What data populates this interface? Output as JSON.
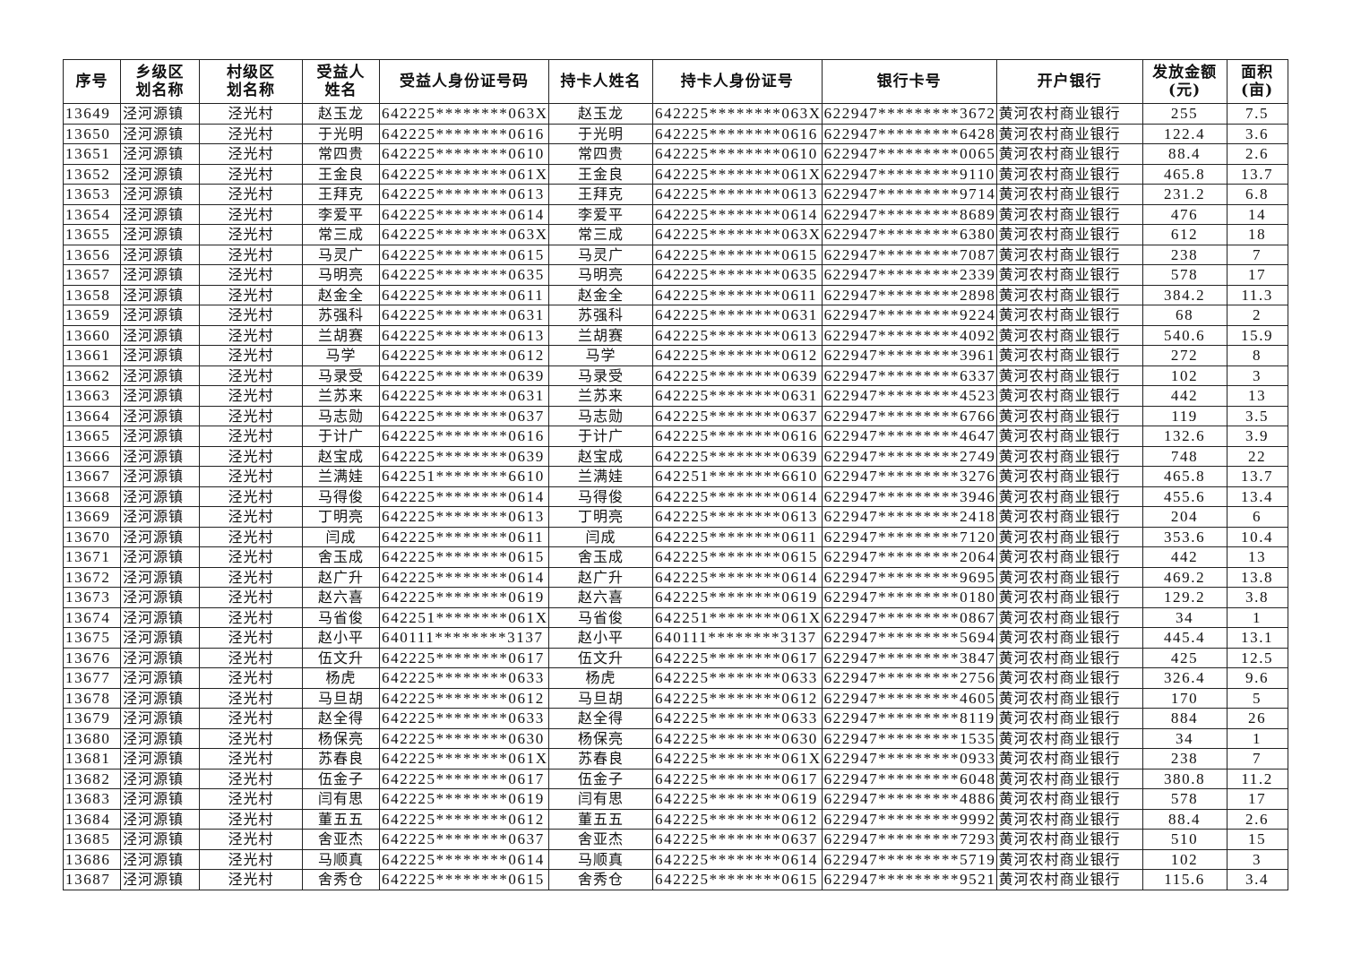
{
  "table": {
    "headers": [
      "序号",
      "乡级区\n划名称",
      "村级区\n划名称",
      "受益人\n姓名",
      "受益人身份证号码",
      "持卡人姓名",
      "持卡人身份证号",
      "银行卡号",
      "开户银行",
      "发放金额\n(元)",
      "面积\n(亩)"
    ],
    "rows": [
      [
        "13649",
        "泾河源镇",
        "泾光村",
        "赵玉龙",
        "642225********063X",
        "赵玉龙",
        "642225********063X",
        "622947*********3672",
        "黄河农村商业银行",
        "255",
        "7.5"
      ],
      [
        "13650",
        "泾河源镇",
        "泾光村",
        "于光明",
        "642225********0616",
        "于光明",
        "642225********0616",
        "622947*********6428",
        "黄河农村商业银行",
        "122.4",
        "3.6"
      ],
      [
        "13651",
        "泾河源镇",
        "泾光村",
        "常四贵",
        "642225********0610",
        "常四贵",
        "642225********0610",
        "622947*********0065",
        "黄河农村商业银行",
        "88.4",
        "2.6"
      ],
      [
        "13652",
        "泾河源镇",
        "泾光村",
        "王金良",
        "642225********061X",
        "王金良",
        "642225********061X",
        "622947*********9110",
        "黄河农村商业银行",
        "465.8",
        "13.7"
      ],
      [
        "13653",
        "泾河源镇",
        "泾光村",
        "王拜克",
        "642225********0613",
        "王拜克",
        "642225********0613",
        "622947*********9714",
        "黄河农村商业银行",
        "231.2",
        "6.8"
      ],
      [
        "13654",
        "泾河源镇",
        "泾光村",
        "李爱平",
        "642225********0614",
        "李爱平",
        "642225********0614",
        "622947*********8689",
        "黄河农村商业银行",
        "476",
        "14"
      ],
      [
        "13655",
        "泾河源镇",
        "泾光村",
        "常三成",
        "642225********063X",
        "常三成",
        "642225********063X",
        "622947*********6380",
        "黄河农村商业银行",
        "612",
        "18"
      ],
      [
        "13656",
        "泾河源镇",
        "泾光村",
        "马灵广",
        "642225********0615",
        "马灵广",
        "642225********0615",
        "622947*********7087",
        "黄河农村商业银行",
        "238",
        "7"
      ],
      [
        "13657",
        "泾河源镇",
        "泾光村",
        "马明亮",
        "642225********0635",
        "马明亮",
        "642225********0635",
        "622947*********2339",
        "黄河农村商业银行",
        "578",
        "17"
      ],
      [
        "13658",
        "泾河源镇",
        "泾光村",
        "赵金全",
        "642225********0611",
        "赵金全",
        "642225********0611",
        "622947*********2898",
        "黄河农村商业银行",
        "384.2",
        "11.3"
      ],
      [
        "13659",
        "泾河源镇",
        "泾光村",
        "苏强科",
        "642225********0631",
        "苏强科",
        "642225********0631",
        "622947*********9224",
        "黄河农村商业银行",
        "68",
        "2"
      ],
      [
        "13660",
        "泾河源镇",
        "泾光村",
        "兰胡赛",
        "642225********0613",
        "兰胡赛",
        "642225********0613",
        "622947*********4092",
        "黄河农村商业银行",
        "540.6",
        "15.9"
      ],
      [
        "13661",
        "泾河源镇",
        "泾光村",
        "马学",
        "642225********0612",
        "马学",
        "642225********0612",
        "622947*********3961",
        "黄河农村商业银行",
        "272",
        "8"
      ],
      [
        "13662",
        "泾河源镇",
        "泾光村",
        "马录受",
        "642225********0639",
        "马录受",
        "642225********0639",
        "622947*********6337",
        "黄河农村商业银行",
        "102",
        "3"
      ],
      [
        "13663",
        "泾河源镇",
        "泾光村",
        "兰苏来",
        "642225********0631",
        "兰苏来",
        "642225********0631",
        "622947*********4523",
        "黄河农村商业银行",
        "442",
        "13"
      ],
      [
        "13664",
        "泾河源镇",
        "泾光村",
        "马志勋",
        "642225********0637",
        "马志勋",
        "642225********0637",
        "622947*********6766",
        "黄河农村商业银行",
        "119",
        "3.5"
      ],
      [
        "13665",
        "泾河源镇",
        "泾光村",
        "于计广",
        "642225********0616",
        "于计广",
        "642225********0616",
        "622947*********4647",
        "黄河农村商业银行",
        "132.6",
        "3.9"
      ],
      [
        "13666",
        "泾河源镇",
        "泾光村",
        "赵宝成",
        "642225********0639",
        "赵宝成",
        "642225********0639",
        "622947*********2749",
        "黄河农村商业银行",
        "748",
        "22"
      ],
      [
        "13667",
        "泾河源镇",
        "泾光村",
        "兰满娃",
        "642251********6610",
        "兰满娃",
        "642251********6610",
        "622947*********3276",
        "黄河农村商业银行",
        "465.8",
        "13.7"
      ],
      [
        "13668",
        "泾河源镇",
        "泾光村",
        "马得俊",
        "642225********0614",
        "马得俊",
        "642225********0614",
        "622947*********3946",
        "黄河农村商业银行",
        "455.6",
        "13.4"
      ],
      [
        "13669",
        "泾河源镇",
        "泾光村",
        "丁明亮",
        "642225********0613",
        "丁明亮",
        "642225********0613",
        "622947*********2418",
        "黄河农村商业银行",
        "204",
        "6"
      ],
      [
        "13670",
        "泾河源镇",
        "泾光村",
        "闫成",
        "642225********0611",
        "闫成",
        "642225********0611",
        "622947*********7120",
        "黄河农村商业银行",
        "353.6",
        "10.4"
      ],
      [
        "13671",
        "泾河源镇",
        "泾光村",
        "舍玉成",
        "642225********0615",
        "舍玉成",
        "642225********0615",
        "622947*********2064",
        "黄河农村商业银行",
        "442",
        "13"
      ],
      [
        "13672",
        "泾河源镇",
        "泾光村",
        "赵广升",
        "642225********0614",
        "赵广升",
        "642225********0614",
        "622947*********9695",
        "黄河农村商业银行",
        "469.2",
        "13.8"
      ],
      [
        "13673",
        "泾河源镇",
        "泾光村",
        "赵六喜",
        "642225********0619",
        "赵六喜",
        "642225********0619",
        "622947*********0180",
        "黄河农村商业银行",
        "129.2",
        "3.8"
      ],
      [
        "13674",
        "泾河源镇",
        "泾光村",
        "马省俊",
        "642251********061X",
        "马省俊",
        "642251********061X",
        "622947*********0867",
        "黄河农村商业银行",
        "34",
        "1"
      ],
      [
        "13675",
        "泾河源镇",
        "泾光村",
        "赵小平",
        "640111********3137",
        "赵小平",
        "640111********3137",
        "622947*********5694",
        "黄河农村商业银行",
        "445.4",
        "13.1"
      ],
      [
        "13676",
        "泾河源镇",
        "泾光村",
        "伍文升",
        "642225********0617",
        "伍文升",
        "642225********0617",
        "622947*********3847",
        "黄河农村商业银行",
        "425",
        "12.5"
      ],
      [
        "13677",
        "泾河源镇",
        "泾光村",
        "杨虎",
        "642225********0633",
        "杨虎",
        "642225********0633",
        "622947*********2756",
        "黄河农村商业银行",
        "326.4",
        "9.6"
      ],
      [
        "13678",
        "泾河源镇",
        "泾光村",
        "马旦胡",
        "642225********0612",
        "马旦胡",
        "642225********0612",
        "622947*********4605",
        "黄河农村商业银行",
        "170",
        "5"
      ],
      [
        "13679",
        "泾河源镇",
        "泾光村",
        "赵全得",
        "642225********0633",
        "赵全得",
        "642225********0633",
        "622947*********8119",
        "黄河农村商业银行",
        "884",
        "26"
      ],
      [
        "13680",
        "泾河源镇",
        "泾光村",
        "杨保亮",
        "642225********0630",
        "杨保亮",
        "642225********0630",
        "622947*********1535",
        "黄河农村商业银行",
        "34",
        "1"
      ],
      [
        "13681",
        "泾河源镇",
        "泾光村",
        "苏春良",
        "642225********061X",
        "苏春良",
        "642225********061X",
        "622947*********0933",
        "黄河农村商业银行",
        "238",
        "7"
      ],
      [
        "13682",
        "泾河源镇",
        "泾光村",
        "伍金子",
        "642225********0617",
        "伍金子",
        "642225********0617",
        "622947*********6048",
        "黄河农村商业银行",
        "380.8",
        "11.2"
      ],
      [
        "13683",
        "泾河源镇",
        "泾光村",
        "闫有思",
        "642225********0619",
        "闫有思",
        "642225********0619",
        "622947*********4886",
        "黄河农村商业银行",
        "578",
        "17"
      ],
      [
        "13684",
        "泾河源镇",
        "泾光村",
        "董五五",
        "642225********0612",
        "董五五",
        "642225********0612",
        "622947*********9992",
        "黄河农村商业银行",
        "88.4",
        "2.6"
      ],
      [
        "13685",
        "泾河源镇",
        "泾光村",
        "舍亚杰",
        "642225********0637",
        "舍亚杰",
        "642225********0637",
        "622947*********7293",
        "黄河农村商业银行",
        "510",
        "15"
      ],
      [
        "13686",
        "泾河源镇",
        "泾光村",
        "马顺真",
        "642225********0614",
        "马顺真",
        "642225********0614",
        "622947*********5719",
        "黄河农村商业银行",
        "102",
        "3"
      ],
      [
        "13687",
        "泾河源镇",
        "泾光村",
        "舍秀仓",
        "642225********0615",
        "舍秀仓",
        "642225********0615",
        "622947*********9521",
        "黄河农村商业银行",
        "115.6",
        "3.4"
      ]
    ]
  }
}
